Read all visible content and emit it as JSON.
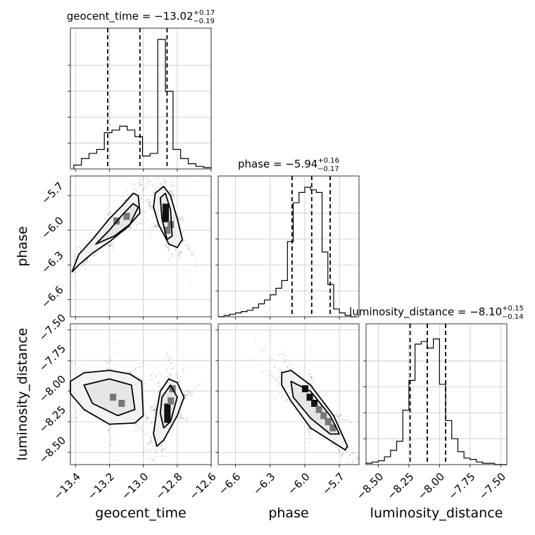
{
  "chart_data": {
    "type": "corner",
    "parameters": [
      "geocent_time",
      "phase",
      "luminosity_distance"
    ],
    "titles": [
      {
        "prefix": "geocent_time = ",
        "median": "−13.02",
        "plus": "+0.17",
        "minus": "−0.19"
      },
      {
        "prefix": "phase = ",
        "median": "−5.94",
        "plus": "+0.16",
        "minus": "−0.17"
      },
      {
        "prefix": "luminosity_distance = ",
        "median": "−8.10",
        "plus": "+0.15",
        "minus": "−0.14"
      }
    ],
    "ranges": [
      [
        -13.43,
        -12.6
      ],
      [
        -6.75,
        -5.53
      ],
      [
        -8.6,
        -7.45
      ]
    ],
    "ticks": [
      {
        "values": [
          -13.4,
          -13.2,
          -13.0,
          -12.8,
          -12.6
        ],
        "labels": [
          "−13.4",
          "−13.2",
          "−13.0",
          "−12.8",
          "−12.6"
        ]
      },
      {
        "values": [
          -6.6,
          -6.3,
          -6.0,
          -5.7
        ],
        "labels": [
          "−6.6",
          "−6.3",
          "−6.0",
          "−5.7"
        ]
      },
      {
        "values": [
          -8.5,
          -8.25,
          -8.0,
          -7.75,
          -7.5
        ],
        "labels": [
          "−8.50",
          "−8.25",
          "−8.00",
          "−7.75",
          "−7.50"
        ]
      }
    ],
    "quantile_lines": [
      [
        -13.21,
        -13.02,
        -12.86
      ],
      [
        -6.11,
        -5.94,
        -5.78
      ],
      [
        -8.24,
        -8.1,
        -7.95
      ]
    ],
    "histograms": [
      {
        "bins": [
          -13.41,
          -13.365,
          -13.32,
          -13.275,
          -13.23,
          -13.185,
          -13.14,
          -13.095,
          -13.05,
          -13.005,
          -12.96,
          -12.915,
          -12.87,
          -12.825,
          -12.78,
          -12.735,
          -12.69,
          -12.645,
          -12.6
        ],
        "counts": [
          0.03,
          0.08,
          0.12,
          0.15,
          0.28,
          0.3,
          0.33,
          0.3,
          0.25,
          0.1,
          0.12,
          1.0,
          0.6,
          0.15,
          0.08,
          0.04,
          0.02,
          0.01
        ]
      },
      {
        "bins": [
          -6.75,
          -6.7,
          -6.65,
          -6.6,
          -6.55,
          -6.5,
          -6.45,
          -6.4,
          -6.35,
          -6.3,
          -6.25,
          -6.2,
          -6.15,
          -6.1,
          -6.05,
          -6.0,
          -5.95,
          -5.9,
          -5.85,
          -5.8,
          -5.75,
          -5.7,
          -5.65,
          -5.6,
          -5.55
        ],
        "counts": [
          0.0,
          0.01,
          0.02,
          0.03,
          0.04,
          0.05,
          0.07,
          0.1,
          0.13,
          0.17,
          0.22,
          0.28,
          0.58,
          0.88,
          0.96,
          1.0,
          0.98,
          0.96,
          0.5,
          0.25,
          0.06,
          0.03,
          0.01,
          0.0
        ]
      },
      {
        "bins": [
          -8.6,
          -8.55,
          -8.5,
          -8.45,
          -8.4,
          -8.35,
          -8.3,
          -8.25,
          -8.2,
          -8.15,
          -8.1,
          -8.05,
          -8.0,
          -7.95,
          -7.9,
          -7.85,
          -7.8,
          -7.75,
          -7.7,
          -7.65,
          -7.6,
          -7.55,
          -7.5,
          -7.45
        ],
        "counts": [
          0.01,
          0.02,
          0.03,
          0.06,
          0.11,
          0.18,
          0.42,
          0.65,
          0.93,
          0.95,
          0.9,
          0.97,
          0.62,
          0.34,
          0.2,
          0.1,
          0.05,
          0.04,
          0.02,
          0.01,
          0.01,
          0.0,
          0.0
        ]
      }
    ],
    "contours": {
      "p1_0": [
        {
          "level": "outer",
          "points": [
            [
              -13.42,
              -6.36
            ],
            [
              -13.38,
              -6.21
            ],
            [
              -13.3,
              -6.08
            ],
            [
              -13.2,
              -5.9
            ],
            [
              -13.12,
              -5.78
            ],
            [
              -13.06,
              -5.68
            ],
            [
              -13.03,
              -5.7
            ],
            [
              -13.02,
              -5.85
            ],
            [
              -13.09,
              -5.97
            ],
            [
              -13.2,
              -6.1
            ],
            [
              -13.3,
              -6.2
            ],
            [
              -13.38,
              -6.3
            ]
          ]
        },
        {
          "level": "inner",
          "points": [
            [
              -13.28,
              -6.12
            ],
            [
              -13.2,
              -6.0
            ],
            [
              -13.12,
              -5.86
            ],
            [
              -13.06,
              -5.77
            ],
            [
              -13.03,
              -5.8
            ],
            [
              -13.08,
              -5.95
            ],
            [
              -13.17,
              -6.05
            ]
          ]
        },
        {
          "level": "outer",
          "points": [
            [
              -12.93,
              -5.68
            ],
            [
              -12.88,
              -5.62
            ],
            [
              -12.84,
              -5.7
            ],
            [
              -12.8,
              -5.9
            ],
            [
              -12.77,
              -6.08
            ],
            [
              -12.8,
              -6.15
            ],
            [
              -12.85,
              -6.12
            ],
            [
              -12.91,
              -5.95
            ],
            [
              -12.94,
              -5.8
            ]
          ]
        },
        {
          "level": "inner",
          "points": [
            [
              -12.9,
              -5.72
            ],
            [
              -12.87,
              -5.68
            ],
            [
              -12.84,
              -5.82
            ],
            [
              -12.83,
              -6.05
            ],
            [
              -12.86,
              -6.08
            ],
            [
              -12.89,
              -5.9
            ]
          ]
        }
      ],
      "p2_0": [
        {
          "level": "outer",
          "points": [
            [
              -13.43,
              -7.92
            ],
            [
              -13.35,
              -7.85
            ],
            [
              -13.2,
              -7.83
            ],
            [
              -13.08,
              -7.86
            ],
            [
              -13.01,
              -7.92
            ],
            [
              -13.0,
              -8.2
            ],
            [
              -13.05,
              -8.26
            ],
            [
              -13.2,
              -8.27
            ],
            [
              -13.35,
              -8.15
            ],
            [
              -13.43,
              -8.02
            ]
          ]
        },
        {
          "level": "inner",
          "points": [
            [
              -13.35,
              -7.95
            ],
            [
              -13.2,
              -7.9
            ],
            [
              -13.07,
              -7.95
            ],
            [
              -13.05,
              -8.15
            ],
            [
              -13.15,
              -8.2
            ],
            [
              -13.3,
              -8.1
            ]
          ]
        },
        {
          "level": "outer",
          "points": [
            [
              -12.9,
              -8.0
            ],
            [
              -12.85,
              -7.9
            ],
            [
              -12.8,
              -7.93
            ],
            [
              -12.76,
              -8.05
            ],
            [
              -12.8,
              -8.2
            ],
            [
              -12.88,
              -8.4
            ],
            [
              -12.92,
              -8.45
            ],
            [
              -12.94,
              -8.35
            ],
            [
              -12.92,
              -8.15
            ]
          ]
        },
        {
          "level": "inner",
          "points": [
            [
              -12.89,
              -8.05
            ],
            [
              -12.84,
              -7.95
            ],
            [
              -12.8,
              -8.05
            ],
            [
              -12.84,
              -8.25
            ],
            [
              -12.88,
              -8.3
            ],
            [
              -12.9,
              -8.18
            ]
          ]
        }
      ],
      "p2_1": [
        {
          "level": "outer",
          "points": [
            [
              -6.2,
              -7.85
            ],
            [
              -6.12,
              -7.83
            ],
            [
              -5.95,
              -7.95
            ],
            [
              -5.75,
              -8.2
            ],
            [
              -5.63,
              -8.45
            ],
            [
              -5.65,
              -8.48
            ],
            [
              -5.75,
              -8.42
            ],
            [
              -5.95,
              -8.3
            ],
            [
              -6.12,
              -8.08
            ],
            [
              -6.2,
              -7.95
            ]
          ]
        },
        {
          "level": "inner",
          "points": [
            [
              -6.12,
              -7.92
            ],
            [
              -5.95,
              -8.0
            ],
            [
              -5.78,
              -8.2
            ],
            [
              -5.7,
              -8.35
            ],
            [
              -5.78,
              -8.35
            ],
            [
              -5.95,
              -8.22
            ],
            [
              -6.1,
              -8.05
            ]
          ]
        }
      ]
    },
    "dense_cells": {
      "p1_0": [
        [
          -12.87,
          -5.9
        ],
        [
          -12.87,
          -5.85
        ],
        [
          -12.87,
          -5.8
        ],
        [
          -12.86,
          -6.0
        ],
        [
          -12.84,
          -5.95
        ],
        [
          -13.1,
          -5.88
        ],
        [
          -13.16,
          -5.92
        ]
      ],
      "p2_0": [
        [
          -12.86,
          -8.13
        ],
        [
          -12.86,
          -8.18
        ],
        [
          -12.86,
          -8.23
        ],
        [
          -12.84,
          -8.08
        ],
        [
          -12.83,
          -7.98
        ],
        [
          -13.18,
          -8.05
        ],
        [
          -13.13,
          -8.1
        ]
      ],
      "p2_1": [
        [
          -6.0,
          -7.98
        ],
        [
          -5.96,
          -8.05
        ],
        [
          -5.92,
          -8.1
        ],
        [
          -5.88,
          -8.15
        ],
        [
          -5.84,
          -8.2
        ],
        [
          -5.8,
          -8.25
        ],
        [
          -5.76,
          -8.3
        ]
      ]
    },
    "grid": true
  }
}
